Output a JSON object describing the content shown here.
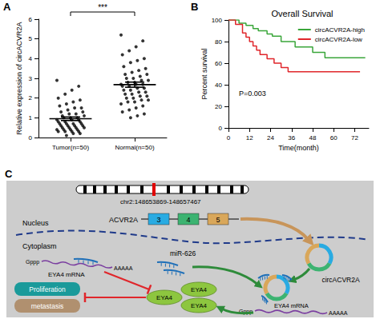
{
  "chart_data": [
    {
      "type": "scatter",
      "panel": "A",
      "ylabel": "Relative expression of circACVR2A",
      "categories": [
        "Tumor(n=50)",
        "Normal(n=50)"
      ],
      "values": [
        [
          2.9,
          2.6,
          2.4,
          2.2,
          2.0,
          1.9,
          1.8,
          1.7,
          1.6,
          1.5,
          1.5,
          1.4,
          1.3,
          1.3,
          1.2,
          1.2,
          1.1,
          1.1,
          1.0,
          1.0,
          1.0,
          0.9,
          0.9,
          0.9,
          0.8,
          0.8,
          0.8,
          0.7,
          0.7,
          0.7,
          0.7,
          0.6,
          0.6,
          0.6,
          0.6,
          0.5,
          0.5,
          0.5,
          0.5,
          0.4,
          0.4,
          0.4,
          0.4,
          0.3,
          0.3,
          0.3,
          0.3,
          0.2,
          0.2,
          0.1
        ],
        [
          5.2,
          4.9,
          4.6,
          4.4,
          4.2,
          4.0,
          3.9,
          3.8,
          3.6,
          3.5,
          3.4,
          3.3,
          3.2,
          3.2,
          3.1,
          3.0,
          3.0,
          2.9,
          2.9,
          2.8,
          2.8,
          2.7,
          2.7,
          2.7,
          2.6,
          2.6,
          2.5,
          2.5,
          2.4,
          2.4,
          2.3,
          2.3,
          2.2,
          2.2,
          2.1,
          2.1,
          2.0,
          2.0,
          1.9,
          1.9,
          1.8,
          1.8,
          1.7,
          1.6,
          1.5,
          1.4,
          1.3,
          1.2,
          1.1,
          1.0
        ]
      ],
      "mean": [
        0.95,
        2.68
      ],
      "error": [
        0.09,
        0.13
      ],
      "annotation": "***",
      "color": "#000000",
      "marker": "circle",
      "ylim": [
        0,
        6
      ],
      "yticks": [
        0,
        1,
        2,
        3,
        4,
        5,
        6
      ],
      "grid": false
    },
    {
      "type": "line",
      "panel": "B",
      "title": "Overall Survival",
      "xlabel": "Time(month)",
      "ylabel": "Percent survival",
      "series": [
        {
          "name": "circACVR2A-high",
          "color": "#3aa63a",
          "x": [
            0,
            6,
            10,
            14,
            17,
            22,
            25,
            30,
            38,
            48,
            55,
            78
          ],
          "values": [
            100,
            97,
            95,
            92,
            90,
            87,
            85,
            80,
            75,
            70,
            65,
            65
          ]
        },
        {
          "name": "circACVR2A-low",
          "color": "#e0262b",
          "x": [
            0,
            4,
            8,
            10,
            12,
            14,
            16,
            18,
            22,
            26,
            30,
            34,
            75
          ],
          "values": [
            100,
            96,
            88,
            84,
            80,
            76,
            72,
            68,
            64,
            60,
            56,
            52,
            52
          ]
        }
      ],
      "line_style": "step",
      "annotation": "P=0.003",
      "legend": "upper right",
      "xlim": [
        0,
        80
      ],
      "xticks": [
        0,
        12,
        24,
        36,
        48,
        60,
        72
      ],
      "ylim": [
        0,
        100
      ],
      "yticks": [
        0,
        20,
        40,
        60,
        80,
        100
      ],
      "grid": false
    }
  ],
  "diagram": {
    "panel": "C",
    "chromosome": "chr2:148653869-148657467",
    "compartments": [
      "Nucleus",
      "Cytoplasm"
    ],
    "gene": {
      "name": "ACVR2A",
      "exons": [
        "3",
        "4",
        "5"
      ]
    },
    "circrna": "circACVR2A",
    "mirna": "miR-626",
    "mrna": {
      "cap": "Gppp",
      "tail": "AAAAA",
      "name": "EYA4 mRNA"
    },
    "protein": {
      "name": "EYA4",
      "copies": 3
    },
    "outcomes": [
      "Proliferation",
      "metastasis"
    ]
  }
}
